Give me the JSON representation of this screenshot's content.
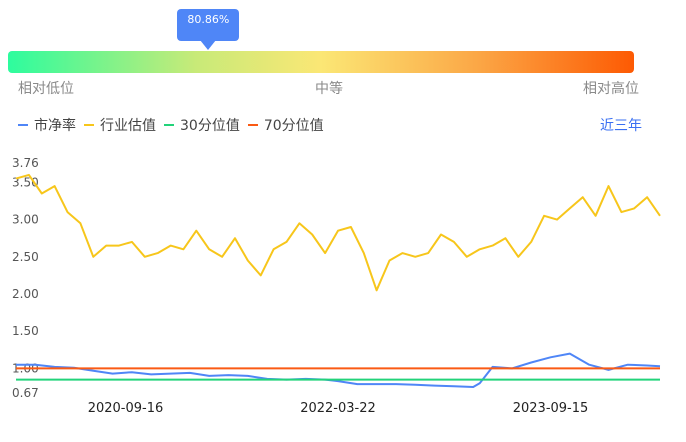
{
  "gauge": {
    "tooltip": "80.86%",
    "percentile": 0.32,
    "low_label": "相对低位",
    "mid_label": "中等",
    "high_label": "相对高位"
  },
  "legend": [
    {
      "label": "市净率",
      "color": "#4f86f7"
    },
    {
      "label": "行业估值",
      "color": "#f7c61b"
    },
    {
      "label": "30分位值",
      "color": "#22d37a"
    },
    {
      "label": "70分位值",
      "color": "#fa5a14"
    }
  ],
  "range_label": "近三年",
  "chart_data": {
    "type": "line",
    "title": "",
    "xlabel": "",
    "ylabel": "",
    "ylim": [
      0.67,
      3.76
    ],
    "yticks": [
      "3.76",
      "3.50",
      "3.00",
      "2.50",
      "2.00",
      "1.50",
      "1.00",
      "0.67"
    ],
    "ytick_values": [
      3.76,
      3.5,
      3.0,
      2.5,
      2.0,
      1.5,
      1.0,
      0.67
    ],
    "xticks": [
      "2020-09-16",
      "2022-03-22",
      "2023-09-15"
    ],
    "xtick_pos": [
      0.17,
      0.5,
      0.83
    ],
    "series": [
      {
        "name": "行业估值",
        "color": "#f7c61b",
        "x": [
          0,
          0.02,
          0.04,
          0.06,
          0.08,
          0.1,
          0.12,
          0.14,
          0.16,
          0.18,
          0.2,
          0.22,
          0.24,
          0.26,
          0.28,
          0.3,
          0.32,
          0.34,
          0.36,
          0.38,
          0.4,
          0.42,
          0.44,
          0.46,
          0.48,
          0.5,
          0.52,
          0.54,
          0.56,
          0.58,
          0.6,
          0.62,
          0.64,
          0.66,
          0.68,
          0.7,
          0.72,
          0.74,
          0.76,
          0.78,
          0.8,
          0.82,
          0.84,
          0.86,
          0.88,
          0.9,
          0.92,
          0.94,
          0.96,
          0.98,
          1.0
        ],
        "values": [
          3.55,
          3.6,
          3.35,
          3.45,
          3.1,
          2.95,
          2.5,
          2.65,
          2.65,
          2.7,
          2.5,
          2.55,
          2.65,
          2.6,
          2.85,
          2.6,
          2.5,
          2.75,
          2.45,
          2.25,
          2.6,
          2.7,
          2.95,
          2.8,
          2.55,
          2.85,
          2.9,
          2.55,
          2.05,
          2.45,
          2.55,
          2.5,
          2.55,
          2.8,
          2.7,
          2.5,
          2.6,
          2.65,
          2.75,
          2.5,
          2.7,
          3.05,
          3.0,
          3.15,
          3.3,
          3.05,
          3.45,
          3.1,
          3.15,
          3.3,
          3.05
        ]
      },
      {
        "name": "市净率",
        "color": "#4f86f7",
        "x": [
          0,
          0.03,
          0.06,
          0.09,
          0.12,
          0.15,
          0.18,
          0.21,
          0.24,
          0.27,
          0.3,
          0.33,
          0.36,
          0.39,
          0.42,
          0.45,
          0.48,
          0.5,
          0.53,
          0.56,
          0.59,
          0.62,
          0.65,
          0.68,
          0.71,
          0.72,
          0.74,
          0.77,
          0.8,
          0.83,
          0.86,
          0.89,
          0.92,
          0.95,
          0.98,
          1.0
        ],
        "values": [
          1.05,
          1.05,
          1.02,
          1.01,
          0.97,
          0.93,
          0.95,
          0.92,
          0.93,
          0.94,
          0.9,
          0.91,
          0.9,
          0.86,
          0.85,
          0.86,
          0.85,
          0.83,
          0.79,
          0.79,
          0.79,
          0.78,
          0.77,
          0.76,
          0.75,
          0.8,
          1.02,
          1.0,
          1.08,
          1.15,
          1.2,
          1.05,
          0.98,
          1.05,
          1.04,
          1.03
        ]
      },
      {
        "name": "30分位值",
        "color": "#22d37a",
        "x": [
          0,
          1
        ],
        "values": [
          0.85,
          0.85
        ]
      },
      {
        "name": "70分位值",
        "color": "#fa5a14",
        "x": [
          0,
          1
        ],
        "values": [
          1.0,
          1.0
        ]
      }
    ]
  }
}
